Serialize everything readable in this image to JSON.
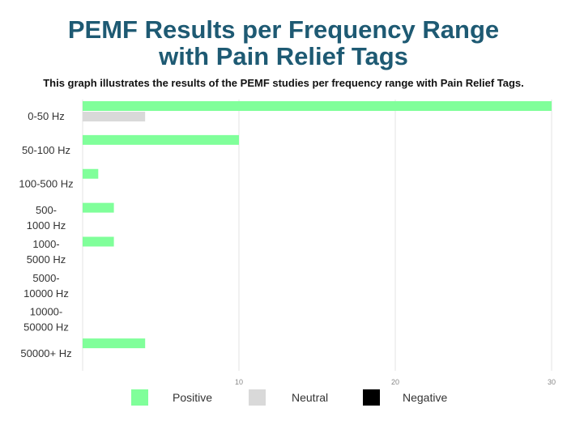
{
  "chart_data": {
    "type": "bar",
    "orientation": "horizontal",
    "title_lines": [
      "PEMF Results per Frequency Range",
      "with Pain Relief Tags"
    ],
    "subtitle": "This graph illustrates the results of the PEMF studies per frequency range with Pain Relief Tags.",
    "categories": [
      [
        "0-50 Hz"
      ],
      [
        "50-100 Hz"
      ],
      [
        "100-500 Hz"
      ],
      [
        "500-",
        "1000 Hz"
      ],
      [
        "1000-",
        "5000 Hz"
      ],
      [
        "5000-",
        "10000 Hz"
      ],
      [
        "10000-",
        "50000 Hz"
      ],
      [
        "50000+ Hz"
      ]
    ],
    "series": [
      {
        "name": "Positive",
        "color": "#80ff9a",
        "values": [
          30,
          10,
          1,
          2,
          2,
          0,
          0,
          4
        ]
      },
      {
        "name": "Neutral",
        "color": "#d9d9d9",
        "values": [
          4,
          0,
          0,
          0,
          0,
          0,
          0,
          0
        ]
      },
      {
        "name": "Negative",
        "color": "#000000",
        "values": [
          0,
          0,
          0,
          0,
          0,
          0,
          0,
          0
        ]
      }
    ],
    "xlim": [
      0,
      30
    ],
    "xticks": [
      10,
      20,
      30
    ],
    "grid": true,
    "legend_position": "bottom"
  }
}
